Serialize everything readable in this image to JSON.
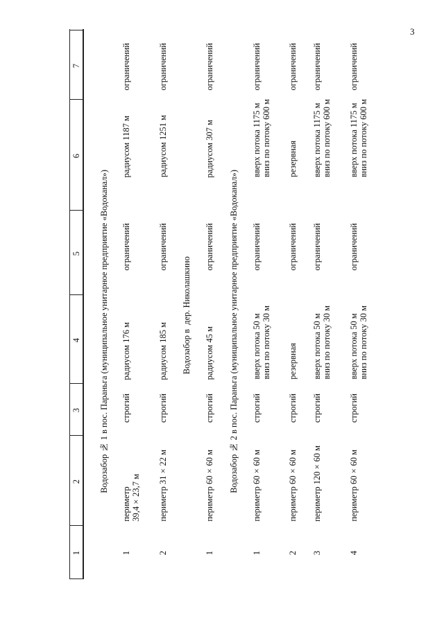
{
  "page_number": "3",
  "table": {
    "column_headers": [
      "1",
      "2",
      "3",
      "4",
      "5",
      "6",
      "7"
    ],
    "sections": [
      {
        "title": "Водозабор № 1 в пос. Параньга (муниципальное унитарное предприятие «Водоканал»)",
        "rows": [
          [
            "1",
            "периметр\n39,4×23,7 м",
            "строгий",
            "радиусом 176 м",
            "ограничений",
            "радиусом 1187 м",
            "ограничений"
          ],
          [
            "2",
            "периметр 31×22 м",
            "строгий",
            "радиусом 185 м",
            "ограничений",
            "радиусом 1251 м",
            "ограничений"
          ]
        ]
      },
      {
        "title": "Водозабор в  дер. Николашкино",
        "rows": [
          [
            "1",
            "периметр 60×60 м",
            "строгий",
            "радиусом 45 м",
            "ограничений",
            "радиусом 307 м",
            "ограничений"
          ]
        ]
      },
      {
        "title": "Водозабор № 2 в пос. Параньга (муниципальное унитарное предприятие «Водоканал»)",
        "rows": [
          [
            "1",
            "периметр 60×60 м",
            "строгий",
            "вверх потока 50 м\nвниз по потоку 30 м",
            "ограничений",
            "вверх потока 1175 м\nвниз по потоку 600 м",
            "ограничений"
          ],
          [
            "2",
            "периметр 60×60 м",
            "строгий",
            "резервная",
            "ограничений",
            "резервная",
            "ограничений"
          ],
          [
            "3",
            "периметр 120×60 м",
            "строгий",
            "вверх потока 50 м\nвниз по потоку 30 м",
            "ограничений",
            "вверх потока 1175 м\nвниз по потоку 600 м",
            "ограничений"
          ],
          [
            "4",
            "периметр 60×60 м",
            "строгий",
            "вверх потока 50 м\nвниз по потоку 30 м",
            "ограничений",
            "вверх потока 1175 м\nвниз по потоку 600 м",
            "ограничений"
          ]
        ]
      }
    ]
  }
}
